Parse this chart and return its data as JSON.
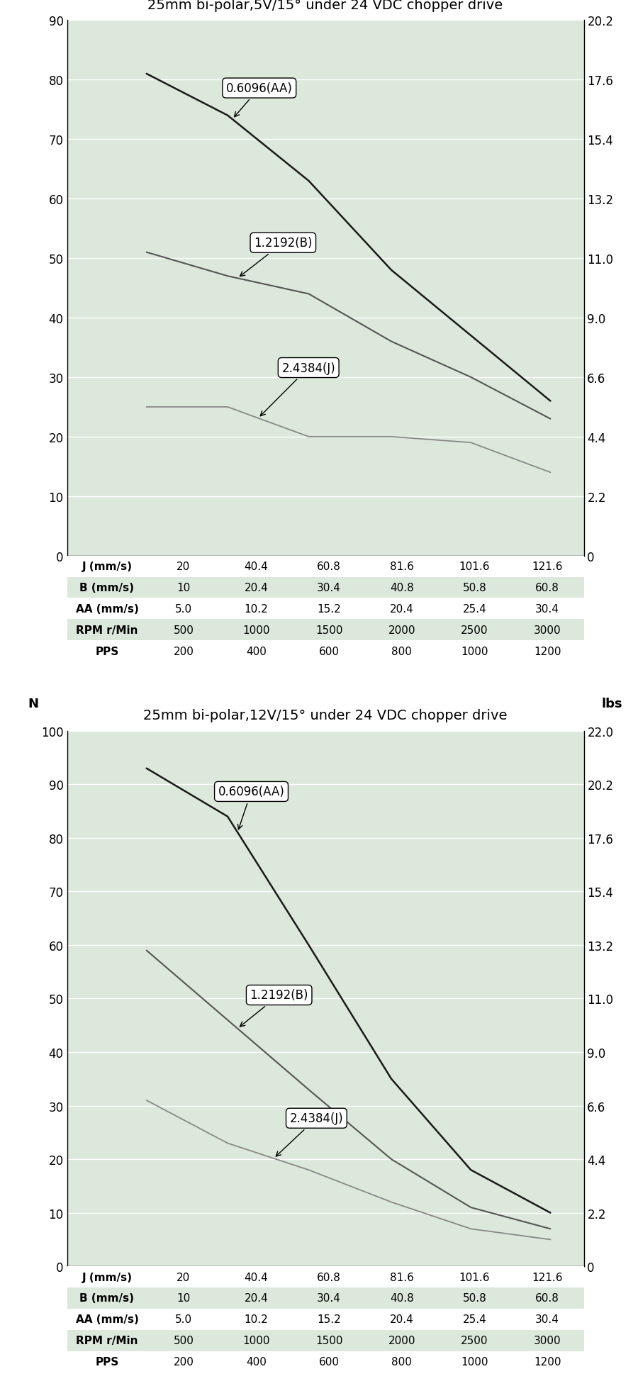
{
  "chart1": {
    "title": "25mm bi-polar,5V/15° under 24 VDC chopper drive",
    "x": [
      20,
      40.4,
      60.8,
      81.6,
      101.6,
      121.6
    ],
    "AA": [
      81,
      74,
      63,
      48,
      37,
      26
    ],
    "B": [
      51,
      47,
      44,
      36,
      30,
      23
    ],
    "J": [
      25,
      25,
      20,
      20,
      19,
      14
    ],
    "ylim": [
      0,
      90
    ],
    "yticks": [
      0,
      10,
      20,
      30,
      40,
      50,
      60,
      70,
      80,
      90
    ],
    "rhs_labels": [
      "0",
      "2.2",
      "4.4",
      "6.6",
      "9.0",
      "11.0",
      "13.2",
      "15.4",
      "17.6",
      "20.2"
    ],
    "ann_AA": {
      "arrow_xi": 0.32,
      "txt_x": 40.0,
      "txt_y": 78.0
    },
    "ann_B": {
      "arrow_xi": 0.33,
      "txt_x": 47.0,
      "txt_y": 52.0
    },
    "ann_J": {
      "arrow_xi": 0.37,
      "txt_x": 54.0,
      "txt_y": 31.0
    }
  },
  "chart2": {
    "title": "25mm bi-polar,12V/15° under 24 VDC chopper drive",
    "x": [
      20,
      40.4,
      60.8,
      81.6,
      101.6,
      121.6
    ],
    "AA": [
      93,
      84,
      60,
      35,
      18,
      10
    ],
    "B": [
      59,
      46,
      33,
      20,
      11,
      7
    ],
    "J": [
      31,
      23,
      18,
      12,
      7,
      5
    ],
    "ylim": [
      0,
      100
    ],
    "yticks": [
      0,
      10,
      20,
      30,
      40,
      50,
      60,
      70,
      80,
      90,
      100
    ],
    "rhs_labels": [
      "0",
      "2.2",
      "4.4",
      "6.6",
      "9.0",
      "11.0",
      "13.2",
      "15.4",
      "17.6",
      "20.2",
      "22.0"
    ],
    "ann_AA": {
      "arrow_xi": 0.33,
      "txt_x": 38.0,
      "txt_y": 88.0
    },
    "ann_B": {
      "arrow_xi": 0.33,
      "txt_x": 46.0,
      "txt_y": 50.0
    },
    "ann_J": {
      "arrow_xi": 0.4,
      "txt_x": 56.0,
      "txt_y": 27.0
    }
  },
  "x_ticks": [
    20,
    40.4,
    60.8,
    81.6,
    101.6,
    121.6
  ],
  "xlim": [
    0,
    130
  ],
  "x_start": 20,
  "table_rows": [
    [
      "J (mm/s)",
      "20",
      "40.4",
      "60.8",
      "81.6",
      "101.6",
      "121.6"
    ],
    [
      "B (mm/s)",
      "10",
      "20.4",
      "30.4",
      "40.8",
      "50.8",
      "60.8"
    ],
    [
      "AA (mm/s)",
      "5.0",
      "10.2",
      "15.2",
      "20.4",
      "25.4",
      "30.4"
    ],
    [
      "RPM r/Min",
      "500",
      "1000",
      "1500",
      "2000",
      "2500",
      "3000"
    ],
    [
      "PPS",
      "200",
      "400",
      "600",
      "800",
      "1000",
      "1200"
    ]
  ],
  "table_row_colors": [
    "#ffffff",
    "#dce8dc",
    "#ffffff",
    "#dce8dc",
    "#ffffff"
  ],
  "bg_color": "#dce8dc",
  "line_color_AA": "#1a1a1a",
  "line_color_B": "#555555",
  "line_color_J": "#888888",
  "fig_bg": "#ffffff",
  "ann_label_AA": "0.6096(AA)",
  "ann_label_B": "1.2192(B)",
  "ann_label_J": "2.4384(J)"
}
